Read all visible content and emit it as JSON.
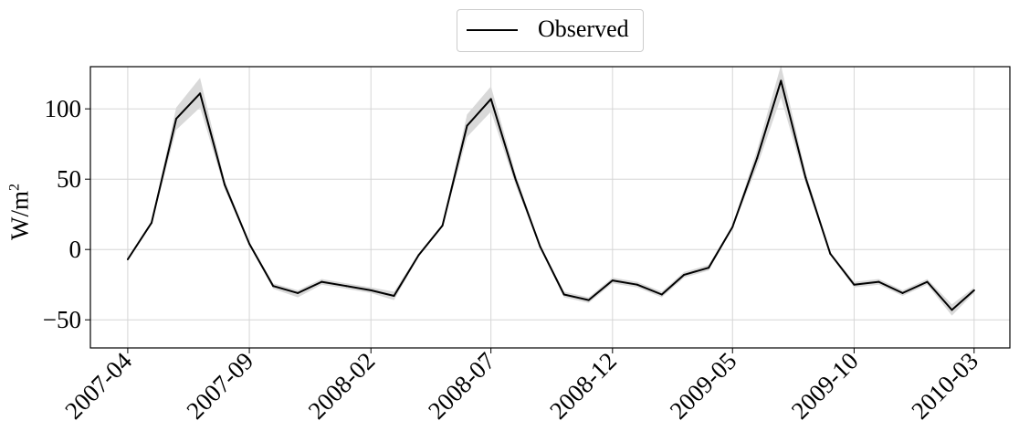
{
  "chart_data": {
    "type": "line",
    "legend": {
      "position": "top-center",
      "entries": [
        "Observed"
      ]
    },
    "ylabel": {
      "text": "W/m",
      "superscript": "2"
    },
    "xlabel": "",
    "grid": true,
    "ylim": [
      -70,
      130
    ],
    "yticks": [
      -50,
      0,
      50,
      100
    ],
    "ytick_labels": [
      "−50",
      "0",
      "50",
      "100"
    ],
    "x_range": [
      "2007-02-13",
      "2010-04-15"
    ],
    "xticks": [
      "2007-04-01",
      "2007-09-01",
      "2008-02-01",
      "2008-07-01",
      "2008-12-01",
      "2009-05-01",
      "2009-10-01",
      "2010-03-01"
    ],
    "xtick_labels": [
      "2007-04",
      "2007-09",
      "2008-02",
      "2008-07",
      "2008-12",
      "2009-05",
      "2009-10",
      "2010-03"
    ],
    "series": [
      {
        "name": "Observed",
        "color": "#000000",
        "band_color": "#d9d9d9",
        "x": [
          "2007-04-01",
          "2007-05-01",
          "2007-06-01",
          "2007-07-01",
          "2007-08-01",
          "2007-09-01",
          "2007-10-01",
          "2007-11-01",
          "2007-12-01",
          "2008-01-01",
          "2008-02-01",
          "2008-03-01",
          "2008-04-01",
          "2008-05-01",
          "2008-06-01",
          "2008-07-01",
          "2008-08-01",
          "2008-09-01",
          "2008-10-01",
          "2008-11-01",
          "2008-12-01",
          "2009-01-01",
          "2009-02-01",
          "2009-03-01",
          "2009-04-01",
          "2009-05-01",
          "2009-06-01",
          "2009-07-01",
          "2009-08-01",
          "2009-09-01",
          "2009-10-01",
          "2009-11-01",
          "2009-12-01",
          "2010-01-01",
          "2010-02-01",
          "2010-03-01"
        ],
        "values": [
          -7,
          19,
          93,
          111,
          46,
          4,
          -26,
          -31,
          -23,
          -26,
          -29,
          -33,
          -4,
          17,
          88,
          107,
          50,
          2,
          -32,
          -36,
          -22,
          -25,
          -32,
          -18,
          -13,
          16,
          65,
          120,
          51,
          -3,
          -25,
          -23,
          -31,
          -23,
          -43,
          -29
        ],
        "lower": [
          -7,
          18,
          85,
          101,
          43,
          3,
          -28,
          -34,
          -25,
          -28,
          -31,
          -36,
          -5,
          16,
          80,
          98,
          46,
          1,
          -34,
          -38,
          -24,
          -27,
          -34,
          -20,
          -15,
          15,
          59,
          108,
          47,
          -4,
          -27,
          -25,
          -33,
          -25,
          -47,
          -31
        ],
        "upper": [
          -6,
          20,
          101,
          122,
          49,
          5,
          -24,
          -29,
          -21,
          -24,
          -27,
          -30,
          -3,
          18,
          96,
          116,
          54,
          3,
          -30,
          -34,
          -20,
          -23,
          -30,
          -16,
          -11,
          17,
          71,
          131,
          55,
          -2,
          -23,
          -21,
          -29,
          -21,
          -39,
          -27
        ]
      }
    ]
  }
}
